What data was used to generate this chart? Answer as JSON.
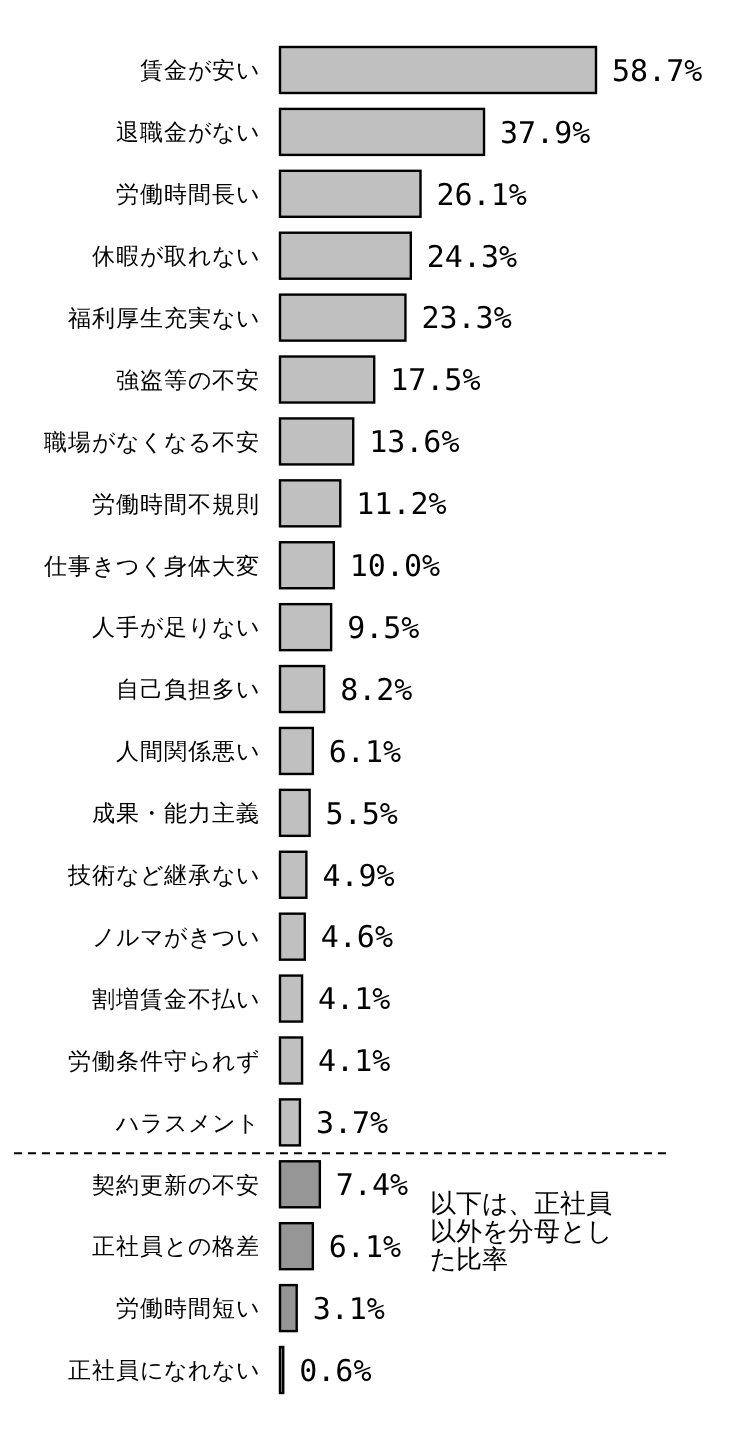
{
  "chart_data": {
    "type": "bar",
    "orientation": "horizontal",
    "categories": [
      "賃金が安い",
      "退職金がない",
      "労働時間長い",
      "休暇が取れない",
      "福利厚生充実ない",
      "強盗等の不安",
      "職場がなくなる不安",
      "労働時間不規則",
      "仕事きつく身体大変",
      "人手が足りない",
      "自己負担多い",
      "人間関係悪い",
      "成果・能力主義",
      "技術など継承ない",
      "ノルマがきつい",
      "割増賃金不払い",
      "労働条件守られず",
      "ハラスメント",
      "契約更新の不安",
      "正社員との格差",
      "労働時間短い",
      "正社員になれない"
    ],
    "values": [
      58.7,
      37.9,
      26.1,
      24.3,
      23.3,
      17.5,
      13.6,
      11.2,
      10.0,
      9.5,
      8.2,
      6.1,
      5.5,
      4.9,
      4.6,
      4.1,
      4.1,
      3.7,
      7.4,
      6.1,
      3.1,
      0.6
    ],
    "value_labels": [
      "58.7%",
      "37.9%",
      "26.1%",
      "24.3%",
      "23.3%",
      "17.5%",
      "13.6%",
      "11.2%",
      "10.0%",
      "9.5%",
      "8.2%",
      "6.1%",
      "5.5%",
      "4.9%",
      "4.6%",
      "4.1%",
      "4.1%",
      "3.7%",
      "7.4%",
      "6.1%",
      "3.1%",
      "0.6%"
    ],
    "colors": [
      "#c0c0c0",
      "#c0c0c0",
      "#c0c0c0",
      "#c0c0c0",
      "#c0c0c0",
      "#c0c0c0",
      "#c0c0c0",
      "#c0c0c0",
      "#c0c0c0",
      "#c0c0c0",
      "#c0c0c0",
      "#c0c0c0",
      "#c0c0c0",
      "#c0c0c0",
      "#c0c0c0",
      "#c0c0c0",
      "#c0c0c0",
      "#c0c0c0",
      "#969696",
      "#969696",
      "#969696",
      "#969696"
    ],
    "annotations": [
      "以下は、正社員以外を分母とした比率"
    ]
  }
}
